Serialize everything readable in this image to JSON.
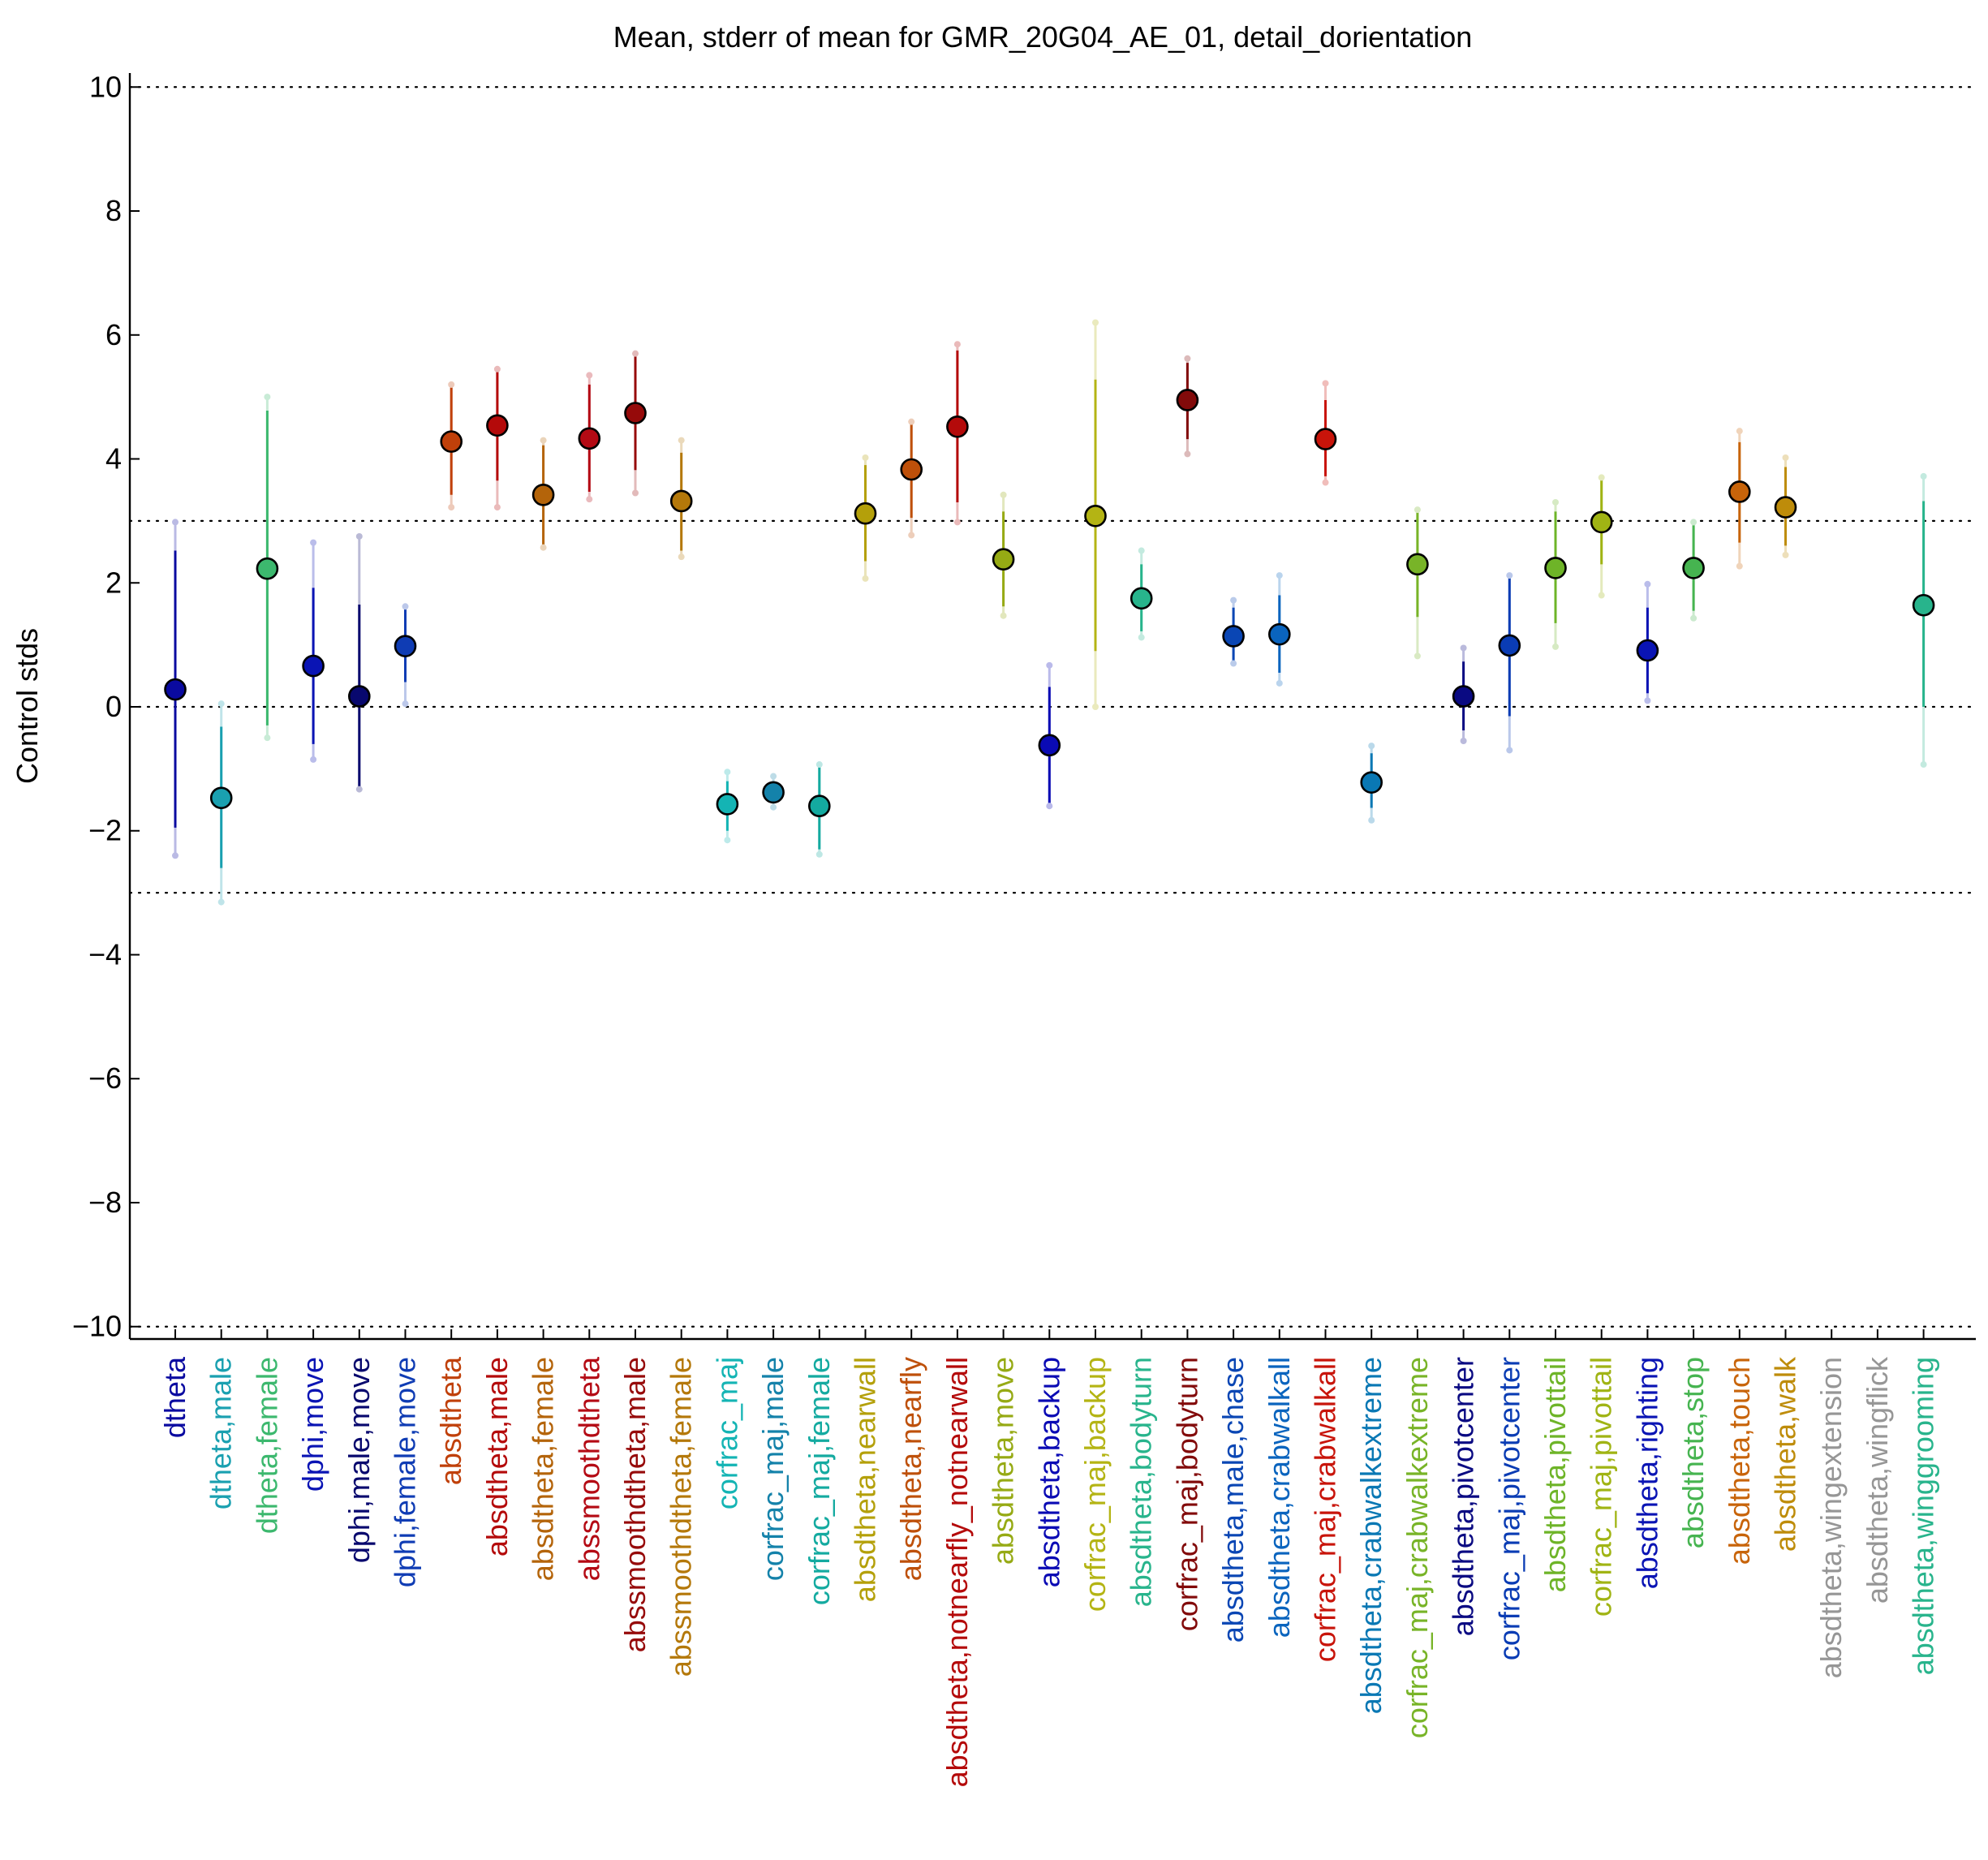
{
  "chart_data": {
    "type": "scatter",
    "title": "Mean, stderr of mean for GMR_20G04_AE_01, detail_dorientation",
    "xlabel": "",
    "ylabel": "Control stds",
    "ylim": [
      -10.2,
      10.2
    ],
    "yticks": [
      -10,
      -8,
      -6,
      -4,
      -2,
      0,
      2,
      4,
      6,
      8,
      10
    ],
    "yticklabels": [
      "−10",
      "−8",
      "−6",
      "−4",
      "−2",
      "0",
      "2",
      "4",
      "6",
      "8",
      "10"
    ],
    "reference_lines": [
      -10,
      -3,
      0,
      3,
      10
    ],
    "grid": false,
    "legend": "none",
    "points": [
      {
        "label": "dtheta",
        "color": "#0a0aa0",
        "mean": 0.28,
        "se_low": -1.95,
        "se_high": 2.52,
        "range_low": -2.4,
        "range_high": 2.98
      },
      {
        "label": "dtheta,male",
        "color": "#1aa0b0",
        "mean": -1.47,
        "se_low": -2.6,
        "se_high": -0.32,
        "range_low": -3.15,
        "range_high": 0.05
      },
      {
        "label": "dtheta,female",
        "color": "#3cb86e",
        "mean": 2.23,
        "se_low": -0.3,
        "se_high": 4.78,
        "range_low": -0.5,
        "range_high": 5.0
      },
      {
        "label": "dphi,move",
        "color": "#0a14b4",
        "mean": 0.66,
        "se_low": -0.6,
        "se_high": 1.92,
        "range_low": -0.85,
        "range_high": 2.65
      },
      {
        "label": "dphi,male,move",
        "color": "#08086e",
        "mean": 0.17,
        "se_low": -1.33,
        "se_high": 1.65,
        "range_low": -1.33,
        "range_high": 2.75
      },
      {
        "label": "dphi,female,move",
        "color": "#0f3cb4",
        "mean": 0.98,
        "se_low": 0.4,
        "se_high": 1.57,
        "range_low": 0.05,
        "range_high": 1.62
      },
      {
        "label": "absdtheta",
        "color": "#c0400a",
        "mean": 4.28,
        "se_low": 3.42,
        "se_high": 5.15,
        "range_low": 3.22,
        "range_high": 5.2
      },
      {
        "label": "absdtheta,male",
        "color": "#b40a0a",
        "mean": 4.54,
        "se_low": 3.65,
        "se_high": 5.45,
        "range_low": 3.22,
        "range_high": 5.45
      },
      {
        "label": "absdtheta,female",
        "color": "#b4640a",
        "mean": 3.42,
        "se_low": 2.62,
        "se_high": 4.22,
        "range_low": 2.57,
        "range_high": 4.3
      },
      {
        "label": "abssmoothdtheta",
        "color": "#b40a14",
        "mean": 4.33,
        "se_low": 3.47,
        "se_high": 5.2,
        "range_low": 3.35,
        "range_high": 5.35
      },
      {
        "label": "abssmoothdtheta,male",
        "color": "#960a0a",
        "mean": 4.74,
        "se_low": 3.82,
        "se_high": 5.65,
        "range_low": 3.45,
        "range_high": 5.7
      },
      {
        "label": "abssmoothdtheta,female",
        "color": "#b4780a",
        "mean": 3.32,
        "se_low": 2.52,
        "se_high": 4.1,
        "range_low": 2.42,
        "range_high": 4.3
      },
      {
        "label": "corfrac_maj",
        "color": "#14b4b4",
        "mean": -1.57,
        "se_low": -2.0,
        "se_high": -1.2,
        "range_low": -2.15,
        "range_high": -1.05
      },
      {
        "label": "corfrac_maj,male",
        "color": "#1482aa",
        "mean": -1.38,
        "se_low": -1.55,
        "se_high": -1.2,
        "range_low": -1.62,
        "range_high": -1.12
      },
      {
        "label": "corfrac_maj,female",
        "color": "#14aaa0",
        "mean": -1.6,
        "se_low": -2.3,
        "se_high": -0.93,
        "range_low": -2.38,
        "range_high": -0.93
      },
      {
        "label": "absdtheta,nearwall",
        "color": "#b4a00a",
        "mean": 3.12,
        "se_low": 2.35,
        "se_high": 3.9,
        "range_low": 2.07,
        "range_high": 4.02
      },
      {
        "label": "absdtheta,nearfly",
        "color": "#be500a",
        "mean": 3.83,
        "se_low": 3.05,
        "se_high": 4.6,
        "range_low": 2.77,
        "range_high": 4.6
      },
      {
        "label": "absdtheta,notnearfly_notnearwall",
        "color": "#b40a0a",
        "mean": 4.52,
        "se_low": 3.3,
        "se_high": 5.75,
        "range_low": 2.98,
        "range_high": 5.85
      },
      {
        "label": "absdtheta,move",
        "color": "#96aa14",
        "mean": 2.38,
        "se_low": 1.62,
        "se_high": 3.15,
        "range_low": 1.47,
        "range_high": 3.42
      },
      {
        "label": "absdtheta,backup",
        "color": "#0a0ab4",
        "mean": -0.62,
        "se_low": -1.55,
        "se_high": 0.32,
        "range_low": -1.6,
        "range_high": 0.67
      },
      {
        "label": "corfrac_maj,backup",
        "color": "#b4b414",
        "mean": 3.08,
        "se_low": 0.9,
        "se_high": 5.28,
        "range_low": 0.0,
        "range_high": 6.2
      },
      {
        "label": "absdtheta,bodyturn",
        "color": "#28b48c",
        "mean": 1.75,
        "se_low": 1.22,
        "se_high": 2.3,
        "range_low": 1.12,
        "range_high": 2.52
      },
      {
        "label": "corfrac_maj,bodyturn",
        "color": "#820a0a",
        "mean": 4.95,
        "se_low": 4.32,
        "se_high": 5.55,
        "range_low": 4.08,
        "range_high": 5.62
      },
      {
        "label": "absdtheta,male,chase",
        "color": "#0a46b4",
        "mean": 1.14,
        "se_low": 0.73,
        "se_high": 1.6,
        "range_low": 0.7,
        "range_high": 1.72
      },
      {
        "label": "absdtheta,crabwalkall",
        "color": "#0a64be",
        "mean": 1.17,
        "se_low": 0.55,
        "se_high": 1.8,
        "range_low": 0.38,
        "range_high": 2.12
      },
      {
        "label": "corfrac_maj,crabwalkall",
        "color": "#c8140a",
        "mean": 4.32,
        "se_low": 3.72,
        "se_high": 4.95,
        "range_low": 3.62,
        "range_high": 5.22
      },
      {
        "label": "absdtheta,crabwalkextreme",
        "color": "#0a78b4",
        "mean": -1.22,
        "se_low": -1.63,
        "se_high": -0.75,
        "range_low": -1.83,
        "range_high": -0.63
      },
      {
        "label": "corfrac_maj,crabwalkextreme",
        "color": "#78b428",
        "mean": 2.3,
        "se_low": 1.45,
        "se_high": 3.18,
        "range_low": 0.82,
        "range_high": 3.18
      },
      {
        "label": "absdtheta,pivotcenter",
        "color": "#0a0a82",
        "mean": 0.17,
        "se_low": -0.38,
        "se_high": 0.73,
        "range_low": -0.55,
        "range_high": 0.95
      },
      {
        "label": "corfrac_maj,pivotcenter",
        "color": "#0a3cb4",
        "mean": 0.99,
        "se_low": -0.15,
        "se_high": 2.12,
        "range_low": -0.7,
        "range_high": 2.12
      },
      {
        "label": "absdtheta,pivottail",
        "color": "#6eb428",
        "mean": 2.24,
        "se_low": 1.35,
        "se_high": 3.15,
        "range_low": 0.97,
        "range_high": 3.3
      },
      {
        "label": "corfrac_maj,pivottail",
        "color": "#a0b414",
        "mean": 2.98,
        "se_low": 2.3,
        "se_high": 3.7,
        "range_low": 1.8,
        "range_high": 3.7
      },
      {
        "label": "absdtheta,righting",
        "color": "#0a14b4",
        "mean": 0.91,
        "se_low": 0.22,
        "se_high": 1.6,
        "range_low": 0.1,
        "range_high": 1.98
      },
      {
        "label": "absdtheta,stop",
        "color": "#46b450",
        "mean": 2.24,
        "se_low": 1.55,
        "se_high": 2.93,
        "range_low": 1.43,
        "range_high": 2.98
      },
      {
        "label": "absdtheta,touch",
        "color": "#c8640a",
        "mean": 3.47,
        "se_low": 2.65,
        "se_high": 4.27,
        "range_low": 2.27,
        "range_high": 4.45
      },
      {
        "label": "absdtheta,walk",
        "color": "#be8c0a",
        "mean": 3.22,
        "se_low": 2.6,
        "se_high": 3.87,
        "range_low": 2.45,
        "range_high": 4.02
      },
      {
        "label": "absdtheta,wingextension",
        "color": "#969696",
        "mean": null,
        "se_low": null,
        "se_high": null,
        "range_low": null,
        "range_high": null
      },
      {
        "label": "absdtheta,wingflick",
        "color": "#969696",
        "mean": null,
        "se_low": null,
        "se_high": null,
        "range_low": null,
        "range_high": null
      },
      {
        "label": "absdtheta,winggrooming",
        "color": "#28b48c",
        "mean": 1.64,
        "se_low": 0.0,
        "se_high": 3.32,
        "range_low": -0.93,
        "range_high": 3.72
      }
    ]
  }
}
